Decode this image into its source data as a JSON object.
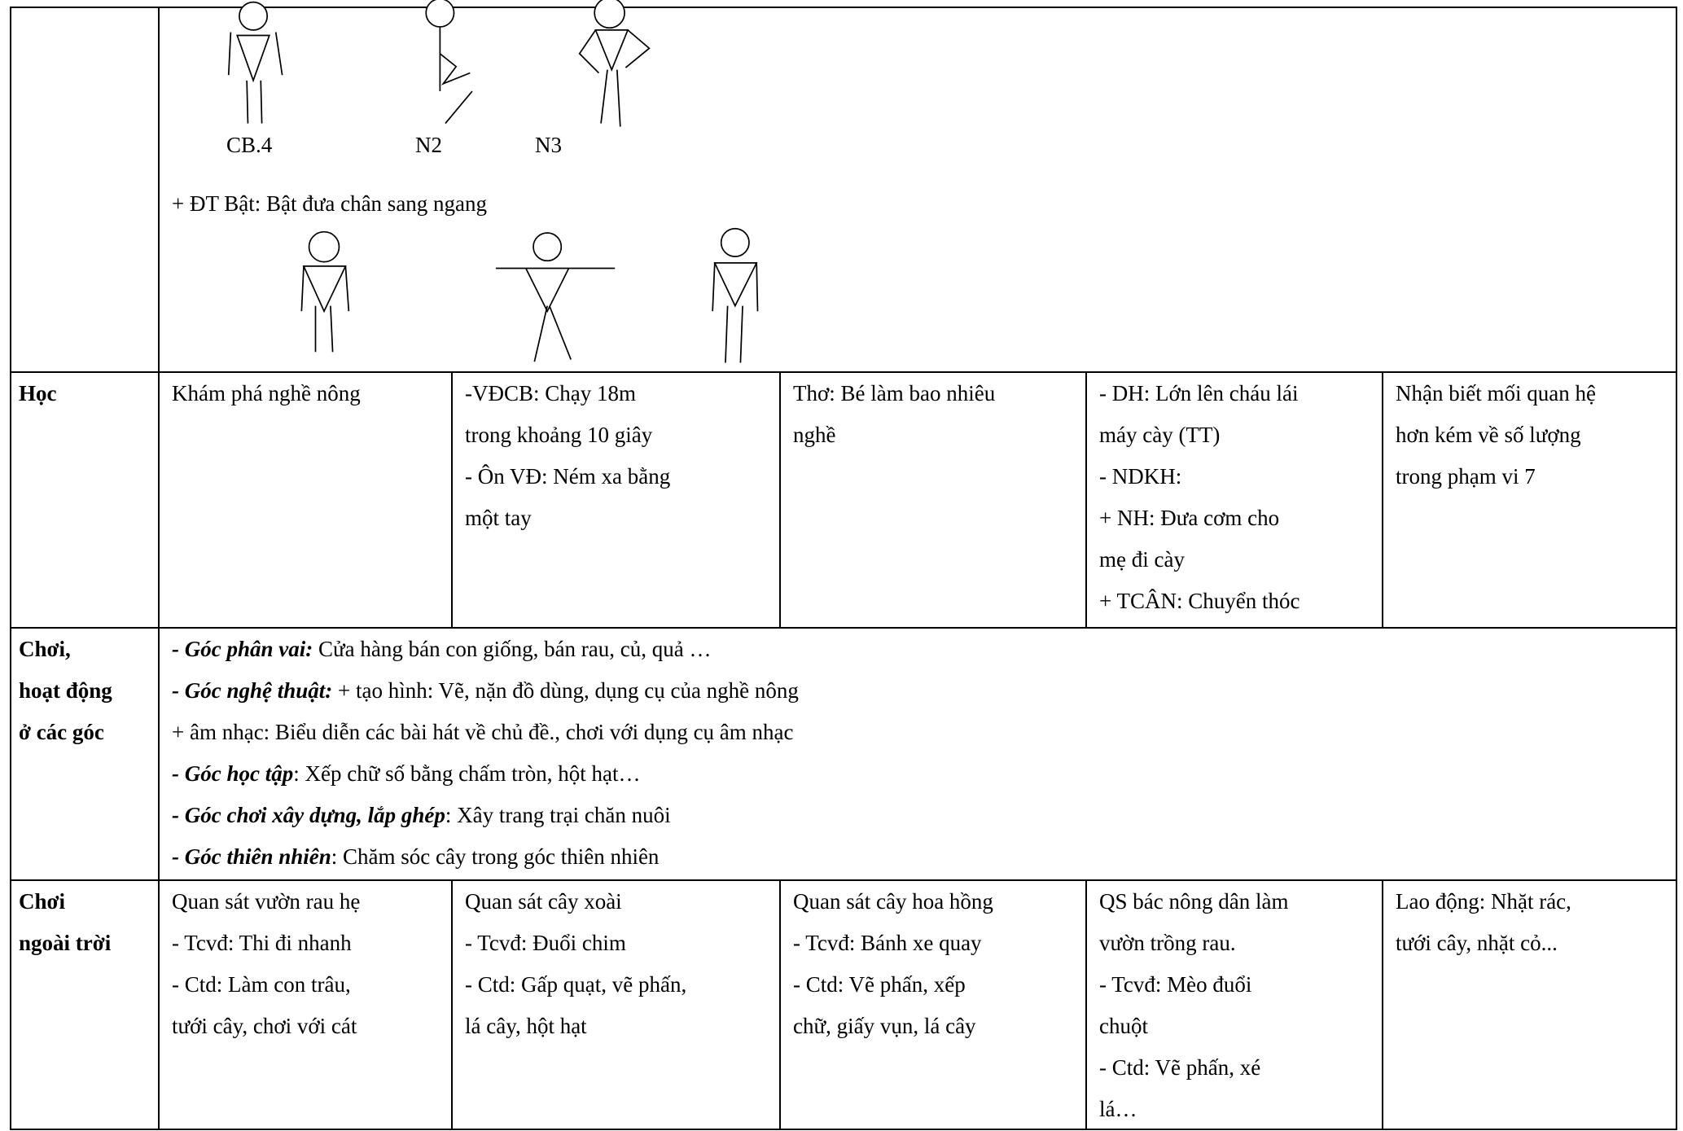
{
  "figures_section": {
    "labels": [
      "CB.4",
      "N2",
      "N3"
    ],
    "text": "+ ĐT Bật: Bật đưa chân sang ngang"
  },
  "rows": [
    {
      "label": [
        "Học"
      ],
      "cells": [
        [
          "Khám phá nghề nông"
        ],
        [
          "-VĐCB: Chạy 18m",
          "trong khoảng 10 giây",
          "- Ôn VĐ: Ném xa bằng",
          "một tay"
        ],
        [
          "Thơ: Bé làm bao nhiêu",
          "nghề"
        ],
        [
          "- DH: Lớn lên cháu lái",
          "máy cày (TT)",
          "- NDKH:",
          "+ NH: Đưa cơm cho",
          "mẹ đi cày",
          "+ TCÂN: Chuyển thóc"
        ],
        [
          "Nhận biết mối quan hệ",
          "hơn kém về số lượng",
          "trong phạm vi 7"
        ]
      ]
    },
    {
      "label": [
        "Chơi,",
        "hoạt động",
        "ở các góc"
      ],
      "content": [
        {
          "em": "- Góc phân vai:",
          "text": " Cửa hàng bán con giống, bán rau, củ, quả …"
        },
        {
          "em": "- Góc nghệ thuật:",
          "text": " + tạo hình: Vẽ, nặn đồ dùng, dụng cụ của nghề nông"
        },
        {
          "text": "+ âm nhạc:  Biểu diễn các bài hát về chủ đề., chơi với dụng cụ âm nhạc"
        },
        {
          "em": "- Góc học tập",
          "text": ": Xếp chữ số bằng chấm tròn, hột hạt…"
        },
        {
          "em": "- Góc chơi xây dựng, lắp ghép",
          "text": ": Xây trang trại chăn nuôi"
        },
        {
          "em": "- Góc thiên nhiên",
          "text": ": Chăm sóc cây trong góc thiên nhiên"
        }
      ]
    },
    {
      "label": [
        "Chơi",
        "ngoài trời"
      ],
      "cells": [
        [
          "Quan sát vườn rau hẹ",
          "- Tcvđ: Thi đi nhanh",
          "- Ctd: Làm con trâu,",
          "tưới cây, chơi với cát"
        ],
        [
          "Quan sát cây xoài",
          "- Tcvđ: Đuổi chim",
          "- Ctd: Gấp quạt, vẽ phấn,",
          "lá cây, hột hạt"
        ],
        [
          "Quan sát cây hoa hồng",
          "- Tcvđ: Bánh xe quay",
          "- Ctd: Vẽ phấn, xếp",
          "chữ, giấy vụn, lá cây"
        ],
        [
          "QS bác nông dân làm",
          "vườn trồng rau.",
          "- Tcvđ: Mèo đuổi",
          "chuột",
          "- Ctd: Vẽ phấn, xé",
          "lá…"
        ],
        [
          "Lao động: Nhặt rác,",
          "tưới cây, nhặt cỏ..."
        ]
      ]
    }
  ]
}
